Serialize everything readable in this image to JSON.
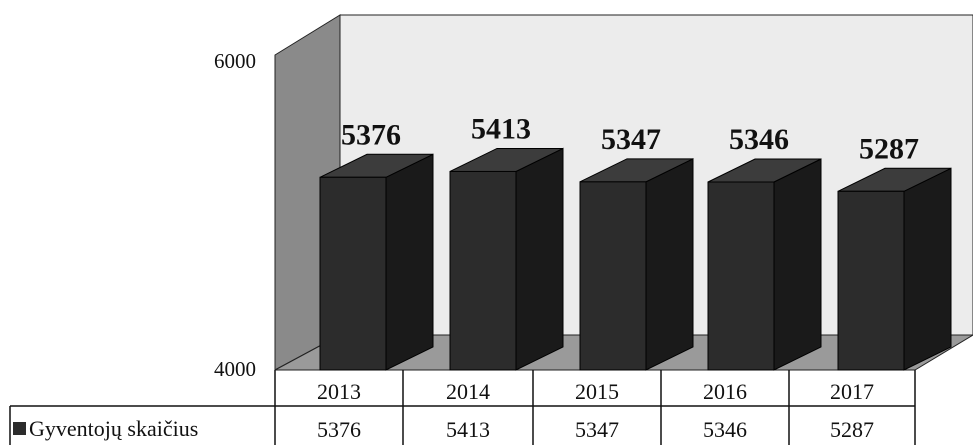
{
  "chart_data": {
    "type": "bar",
    "title": "",
    "xlabel": "",
    "ylabel": "",
    "categories": [
      "2013",
      "2014",
      "2015",
      "2016",
      "2017"
    ],
    "series": [
      {
        "name": "Gyventojų skaičius",
        "values": [
          5376,
          5413,
          5347,
          5346,
          5287
        ]
      }
    ],
    "data_labels": [
      "5376",
      "5413",
      "5347",
      "5346",
      "5287"
    ],
    "ylim": [
      4000,
      6000
    ],
    "yticks": [
      "6000",
      "4000"
    ],
    "style": "3d-column",
    "data_table": true,
    "grid": false,
    "colors": {
      "bar_front": "#2c2c2c",
      "bar_side": "#1a1a1a",
      "bar_top": "#3c3c3c",
      "back_wall": "#ececec",
      "side_wall": "#8a8a8a",
      "floor": "#9a9a9a"
    }
  }
}
